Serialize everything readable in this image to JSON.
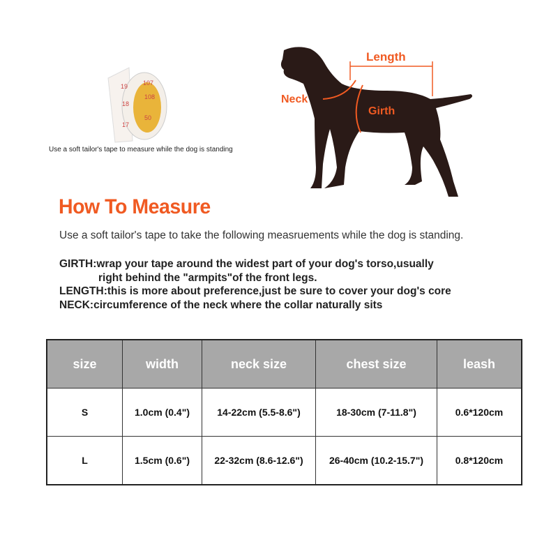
{
  "tape_caption": "Use a soft tailor's tape to measure while the dog is standing",
  "diagram": {
    "length": "Length",
    "neck": "Neck",
    "girth": "Girth"
  },
  "title": "How To Measure",
  "intro": "Use a soft tailor's tape to take the following measruements while the dog is standing.",
  "girth_line1": "GIRTH:wrap your tape around the widest part of your dog's torso,usually",
  "girth_line2": "right behind the \"armpits\"of the front legs.",
  "length_line": "LENGTH:this is more about preference,just be sure to cover your dog's core",
  "neck_line": "NECK:circumference of the neck where the collar naturally sits",
  "colors": {
    "accent": "#f05a22",
    "header": "#a8a8a8"
  },
  "table": {
    "headers": [
      "size",
      "width",
      "neck size",
      "chest size",
      "leash"
    ],
    "rows": [
      [
        "S",
        "1.0cm (0.4\")",
        "14-22cm (5.5-8.6\")",
        "18-30cm (7-11.8\")",
        "0.6*120cm"
      ],
      [
        "L",
        "1.5cm (0.6\")",
        "22-32cm (8.6-12.6\")",
        "26-40cm (10.2-15.7\")",
        "0.8*120cm"
      ]
    ]
  }
}
